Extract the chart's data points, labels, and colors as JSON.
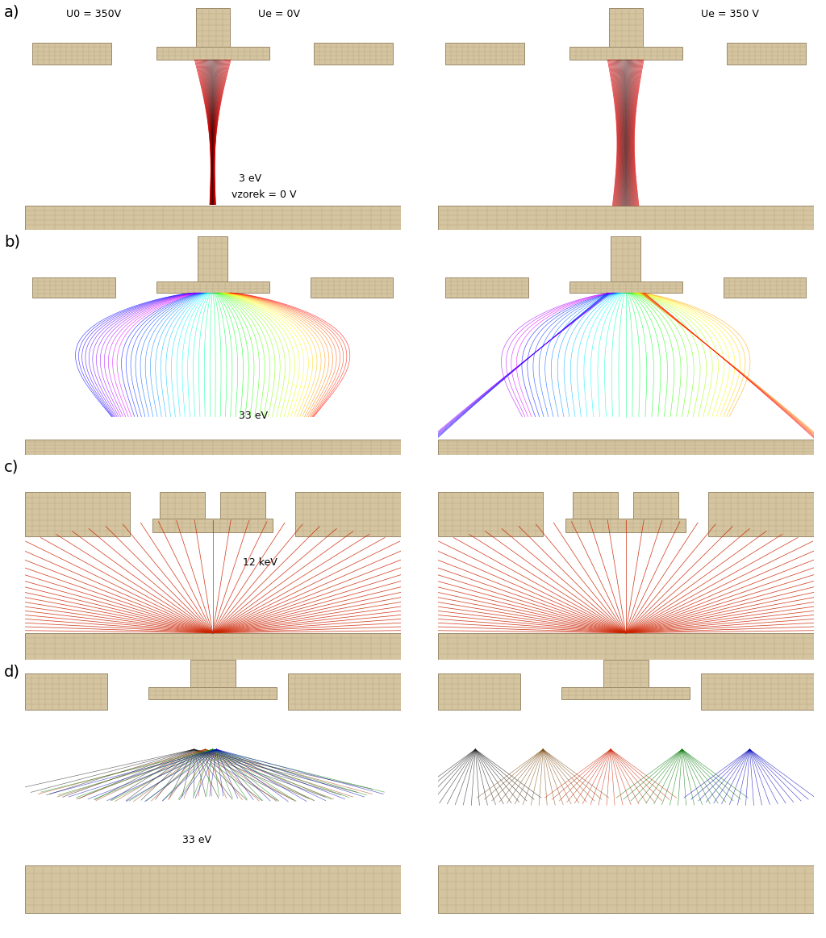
{
  "fig_width": 10.24,
  "fig_height": 11.63,
  "bg": "#ffffff",
  "electrode_face": "#d4c4a0",
  "electrode_edge": "#9a8a6a",
  "grid_line": "#b8a880",
  "panel_labels": [
    "a)",
    "b)",
    "c)",
    "d)"
  ],
  "red_line": "#cc2200",
  "text_color": "#1a1a1a"
}
